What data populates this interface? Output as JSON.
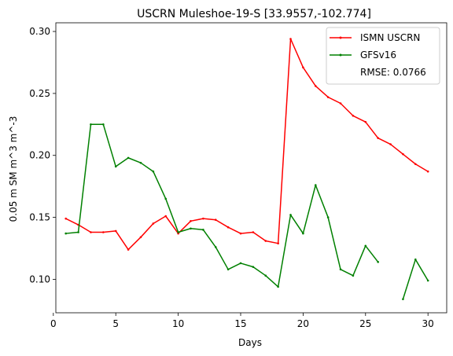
{
  "chart_data": {
    "type": "line",
    "title": "USCRN Muleshoe-19-S [33.9557,-102.774]",
    "xlabel": "Days",
    "ylabel": "0.05 m SM m^3 m^-3",
    "xlim": [
      0.2,
      31.5
    ],
    "ylim": [
      0.073,
      0.307
    ],
    "xticks": [
      0,
      5,
      10,
      15,
      20,
      25,
      30
    ],
    "yticks": [
      0.1,
      0.15,
      0.2,
      0.25,
      0.3
    ],
    "ytick_labels": [
      "0.10",
      "0.15",
      "0.20",
      "0.25",
      "0.30"
    ],
    "grid": false,
    "legend_position": "top-right",
    "annotation": "RMSE: 0.0766",
    "series": [
      {
        "name": "ISMN USCRN",
        "color": "#ff0000",
        "x": [
          1,
          2,
          3,
          4,
          5,
          6,
          7,
          8,
          9,
          10,
          11,
          12,
          13,
          14,
          15,
          16,
          17,
          18,
          19,
          20,
          21,
          22,
          23,
          24,
          25,
          26,
          27,
          28,
          29,
          30
        ],
        "y": [
          0.149,
          0.144,
          0.138,
          0.138,
          0.139,
          0.124,
          0.134,
          0.145,
          0.151,
          0.137,
          0.147,
          0.149,
          0.148,
          0.142,
          0.137,
          0.138,
          0.131,
          0.129,
          0.294,
          0.271,
          0.256,
          0.247,
          0.242,
          0.232,
          0.227,
          0.214,
          0.209,
          0.201,
          0.193,
          0.187
        ]
      },
      {
        "name": "GFSv16",
        "color": "#008000",
        "x": [
          1,
          2,
          3,
          4,
          5,
          6,
          7,
          8,
          9,
          10,
          11,
          12,
          13,
          14,
          15,
          16,
          17,
          18,
          19,
          20,
          21,
          22,
          23,
          24,
          25,
          26,
          27,
          28,
          29,
          30
        ],
        "y": [
          0.137,
          0.138,
          0.225,
          0.225,
          0.191,
          0.198,
          0.194,
          0.187,
          0.165,
          0.138,
          0.141,
          0.14,
          0.126,
          0.108,
          0.113,
          0.11,
          0.103,
          0.094,
          0.152,
          0.137,
          0.176,
          0.15,
          0.108,
          0.103,
          0.127,
          0.114,
          null,
          0.084,
          0.116,
          0.099
        ]
      }
    ]
  }
}
